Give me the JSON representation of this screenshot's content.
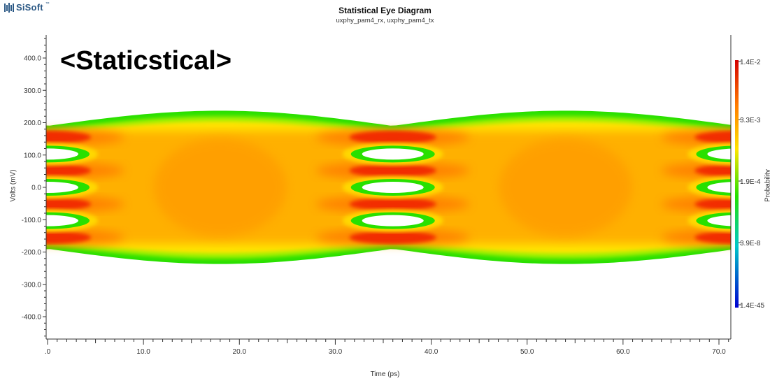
{
  "logo": {
    "text": "SiSoft",
    "tm": "™"
  },
  "chart_data": {
    "type": "heatmap",
    "title": "Statistical Eye Diagram",
    "subtitle": "uxphy_pam4_rx, uxphy_pam4_tx",
    "annotation": "<Staticstical>",
    "xlabel": "Time (ps)",
    "ylabel": "Volts (mV)",
    "xlim": [
      0,
      71.5
    ],
    "ylim": [
      -470,
      470
    ],
    "x_ticks": [
      0,
      10,
      20,
      30,
      40,
      50,
      60,
      70
    ],
    "x_tick_labels": [
      ".0",
      "10.0",
      "20.0",
      "30.0",
      "40.0",
      "50.0",
      "60.0",
      "70.0"
    ],
    "y_ticks": [
      400,
      300,
      200,
      100,
      0,
      -100,
      -200,
      -300,
      -400
    ],
    "y_tick_labels": [
      "400.0",
      "300.0",
      "200.0",
      "100.0",
      "0.0",
      "-100.0",
      "-200.0",
      "-300.0",
      "-400.0"
    ],
    "colorbar": {
      "label": "Probability",
      "ticks": [
        "1.4E-2",
        "3.3E-3",
        "1.9E-4",
        "3.9E-8",
        "1.4E-45"
      ],
      "colors": [
        "#d40000",
        "#ff6a00",
        "#ffe000",
        "#22e000",
        "#00c8c8",
        "#0000d0"
      ]
    },
    "eye": {
      "ui_ps": 36,
      "centers_ps": [
        18,
        54
      ],
      "crossings_ps": [
        0,
        36,
        72
      ],
      "envelope_mv_at_center": 237,
      "envelope_mv_at_crossing": 190,
      "levels_mv": [
        -155,
        -52,
        52,
        155
      ],
      "eye_openings_mv": [
        -103,
        0,
        103
      ]
    }
  }
}
